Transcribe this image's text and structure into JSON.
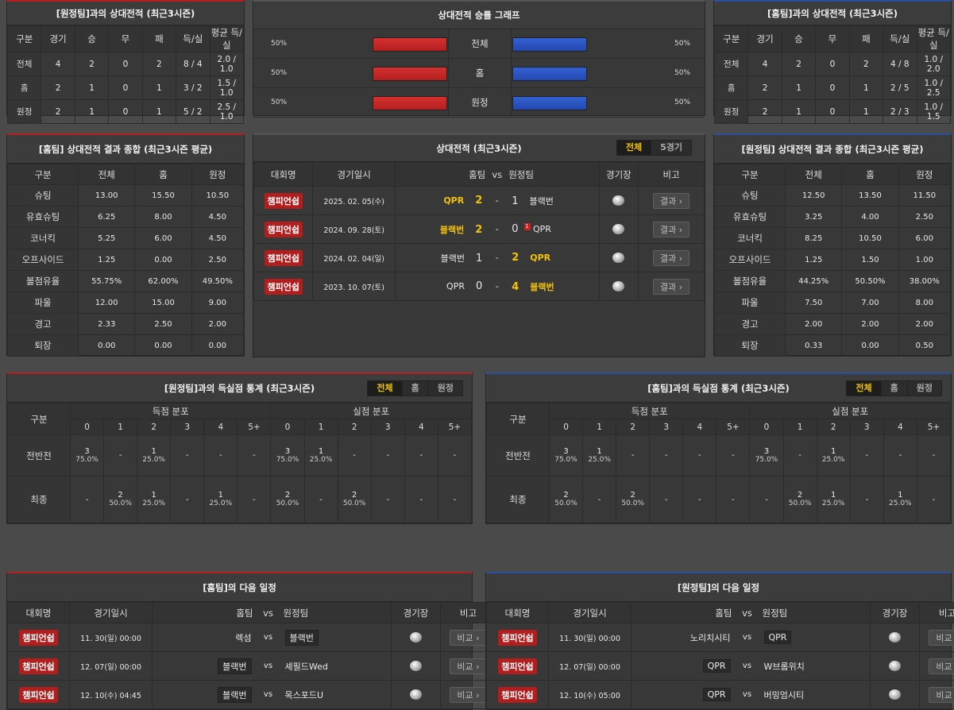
{
  "h2h_away": {
    "title": "[원정팀]과의 상대전적 (최근3시즌)",
    "headers": [
      "구분",
      "경기",
      "승",
      "무",
      "패",
      "득/실",
      "평균 득/실"
    ],
    "rows": [
      [
        "전체",
        "4",
        "2",
        "0",
        "2",
        "8 / 4",
        "2.0 / 1.0"
      ],
      [
        "홈",
        "2",
        "1",
        "0",
        "1",
        "3 / 2",
        "1.5 / 1.0"
      ],
      [
        "원정",
        "2",
        "1",
        "0",
        "1",
        "5 / 2",
        "2.5 / 1.0"
      ]
    ]
  },
  "graph": {
    "title": "상대전적 승률 그래프",
    "rows": [
      {
        "label": "전체",
        "left": "50%",
        "right": "50%"
      },
      {
        "label": "홈",
        "left": "50%",
        "right": "50%"
      },
      {
        "label": "원정",
        "left": "50%",
        "right": "50%"
      }
    ],
    "colors": {
      "home": "#cc2a2a",
      "away": "#2d55c4"
    }
  },
  "h2h_home": {
    "title": "[홈팀]과의 상대전적 (최근3시즌)",
    "headers": [
      "구분",
      "경기",
      "승",
      "무",
      "패",
      "득/실",
      "평균 득/실"
    ],
    "rows": [
      [
        "전체",
        "4",
        "2",
        "0",
        "2",
        "4 / 8",
        "1.0 / 2.0"
      ],
      [
        "홈",
        "2",
        "1",
        "0",
        "1",
        "2 / 5",
        "1.0 / 2.5"
      ],
      [
        "원정",
        "2",
        "1",
        "0",
        "1",
        "2 / 3",
        "1.0 / 1.5"
      ]
    ]
  },
  "sum_home": {
    "title": "[홈팀] 상대전적 결과 종합 (최근3시즌 평균)",
    "headers": [
      "구분",
      "전체",
      "홈",
      "원정"
    ],
    "rows": [
      [
        "슈팅",
        "13.00",
        "15.50",
        "10.50"
      ],
      [
        "유효슈팅",
        "6.25",
        "8.00",
        "4.50"
      ],
      [
        "코너킥",
        "5.25",
        "6.00",
        "4.50"
      ],
      [
        "오프사이드",
        "1.25",
        "0.00",
        "2.50"
      ],
      [
        "볼점유율",
        "55.75%",
        "62.00%",
        "49.50%"
      ],
      [
        "파울",
        "12.00",
        "15.00",
        "9.00"
      ],
      [
        "경고",
        "2.33",
        "2.50",
        "2.00"
      ],
      [
        "퇴장",
        "0.00",
        "0.00",
        "0.00"
      ]
    ]
  },
  "recent": {
    "title": "상대전적 (최근3시즌)",
    "tabs": [
      "전체",
      "5경기"
    ],
    "headers": {
      "league": "대회명",
      "date": "경기일시",
      "home": "홈팀",
      "vs": "vs",
      "away": "원정팀",
      "venue": "경기장",
      "note": "비고"
    },
    "button": "결과 ›",
    "matches": [
      {
        "league": "챔피언쉽",
        "date": "2025. 02. 05(수)",
        "home": "QPR",
        "hs": "2",
        "as": "1",
        "away": "블랙번",
        "win": "home",
        "card": ""
      },
      {
        "league": "챔피언쉽",
        "date": "2024. 09. 28(토)",
        "home": "블랙번",
        "hs": "2",
        "as": "0",
        "away": "QPR",
        "win": "home",
        "card": "1"
      },
      {
        "league": "챔피언쉽",
        "date": "2024. 02. 04(일)",
        "home": "블랙번",
        "hs": "1",
        "as": "2",
        "away": "QPR",
        "win": "away",
        "card": ""
      },
      {
        "league": "챔피언쉽",
        "date": "2023. 10. 07(토)",
        "home": "QPR",
        "hs": "0",
        "as": "4",
        "away": "블랙번",
        "win": "away",
        "card": ""
      }
    ]
  },
  "sum_away": {
    "title": "[원정팀] 상대전적 결과 종합 (최근3시즌 평균)",
    "headers": [
      "구분",
      "전체",
      "홈",
      "원정"
    ],
    "rows": [
      [
        "슈팅",
        "12.50",
        "13.50",
        "11.50"
      ],
      [
        "유효슈팅",
        "3.25",
        "4.00",
        "2.50"
      ],
      [
        "코너킥",
        "8.25",
        "10.50",
        "6.00"
      ],
      [
        "오프사이드",
        "1.25",
        "1.50",
        "1.00"
      ],
      [
        "볼점유율",
        "44.25%",
        "50.50%",
        "38.00%"
      ],
      [
        "파울",
        "7.50",
        "7.00",
        "8.00"
      ],
      [
        "경고",
        "2.00",
        "2.00",
        "2.00"
      ],
      [
        "퇴장",
        "0.33",
        "0.00",
        "0.50"
      ]
    ]
  },
  "goals_left": {
    "title": "[원정팀]과의 득실점 통계 (최근3시즌)",
    "tabs": [
      "전체",
      "홈",
      "원정"
    ],
    "gubun": "구분",
    "scored": "득점 분포",
    "conceded": "실점 분포",
    "cols": [
      "0",
      "1",
      "2",
      "3",
      "4",
      "5+"
    ],
    "rows": [
      {
        "label": "전반전",
        "cells": [
          [
            "3",
            "75.0%"
          ],
          [
            "-",
            ""
          ],
          [
            "1",
            "25.0%"
          ],
          [
            "-",
            ""
          ],
          [
            "-",
            ""
          ],
          [
            "-",
            ""
          ],
          [
            "3",
            "75.0%"
          ],
          [
            "1",
            "25.0%"
          ],
          [
            "-",
            ""
          ],
          [
            "-",
            ""
          ],
          [
            "-",
            ""
          ],
          [
            "-",
            ""
          ]
        ]
      },
      {
        "label": "최종",
        "cells": [
          [
            "-",
            ""
          ],
          [
            "2",
            "50.0%"
          ],
          [
            "1",
            "25.0%"
          ],
          [
            "-",
            ""
          ],
          [
            "1",
            "25.0%"
          ],
          [
            "-",
            ""
          ],
          [
            "2",
            "50.0%"
          ],
          [
            "-",
            ""
          ],
          [
            "2",
            "50.0%"
          ],
          [
            "-",
            ""
          ],
          [
            "-",
            ""
          ],
          [
            "-",
            ""
          ]
        ]
      }
    ]
  },
  "goals_right": {
    "title": "[홈팀]과의 득실점 통계 (최근3시즌)",
    "tabs": [
      "전체",
      "홈",
      "원정"
    ],
    "gubun": "구분",
    "scored": "득점 분포",
    "conceded": "실점 분포",
    "cols": [
      "0",
      "1",
      "2",
      "3",
      "4",
      "5+"
    ],
    "rows": [
      {
        "label": "전반전",
        "cells": [
          [
            "3",
            "75.0%"
          ],
          [
            "1",
            "25.0%"
          ],
          [
            "-",
            ""
          ],
          [
            "-",
            ""
          ],
          [
            "-",
            ""
          ],
          [
            "-",
            ""
          ],
          [
            "3",
            "75.0%"
          ],
          [
            "-",
            ""
          ],
          [
            "1",
            "25.0%"
          ],
          [
            "-",
            ""
          ],
          [
            "-",
            ""
          ],
          [
            "-",
            ""
          ]
        ]
      },
      {
        "label": "최종",
        "cells": [
          [
            "2",
            "50.0%"
          ],
          [
            "-",
            ""
          ],
          [
            "2",
            "50.0%"
          ],
          [
            "-",
            ""
          ],
          [
            "-",
            ""
          ],
          [
            "-",
            ""
          ],
          [
            "-",
            ""
          ],
          [
            "2",
            "50.0%"
          ],
          [
            "1",
            "25.0%"
          ],
          [
            "-",
            ""
          ],
          [
            "1",
            "25.0%"
          ],
          [
            "-",
            ""
          ]
        ]
      }
    ]
  },
  "next_home": {
    "title": "[홈팀]의 다음 일정",
    "headers": {
      "league": "대회명",
      "date": "경기일시",
      "home": "홈팀",
      "vs": "vs",
      "away": "원정팀",
      "venue": "경기장",
      "note": "비고"
    },
    "button": "비교 ›",
    "matches": [
      {
        "league": "챔피언쉽",
        "date": "11. 30(일) 00:00",
        "home": "렉섬",
        "away": "블랙번",
        "tag": "away"
      },
      {
        "league": "챔피언쉽",
        "date": "12. 07(일) 00:00",
        "home": "블랙번",
        "away": "셰필드Wed",
        "tag": "home"
      },
      {
        "league": "챔피언쉽",
        "date": "12. 10(수) 04:45",
        "home": "블랙번",
        "away": "옥스포드U",
        "tag": "home"
      }
    ]
  },
  "next_away": {
    "title": "[원정팀]의 다음 일정",
    "headers": {
      "league": "대회명",
      "date": "경기일시",
      "home": "홈팀",
      "vs": "vs",
      "away": "원정팀",
      "venue": "경기장",
      "note": "비고"
    },
    "button": "비교 ›",
    "matches": [
      {
        "league": "챔피언쉽",
        "date": "11. 30(일) 00:00",
        "home": "노리치시티",
        "away": "QPR",
        "tag": "away"
      },
      {
        "league": "챔피언쉽",
        "date": "12. 07(일) 00:00",
        "home": "QPR",
        "away": "W브롬위치",
        "tag": "home"
      },
      {
        "league": "챔피언쉽",
        "date": "12. 10(수) 05:00",
        "home": "QPR",
        "away": "버밍엄시티",
        "tag": "home"
      }
    ]
  }
}
